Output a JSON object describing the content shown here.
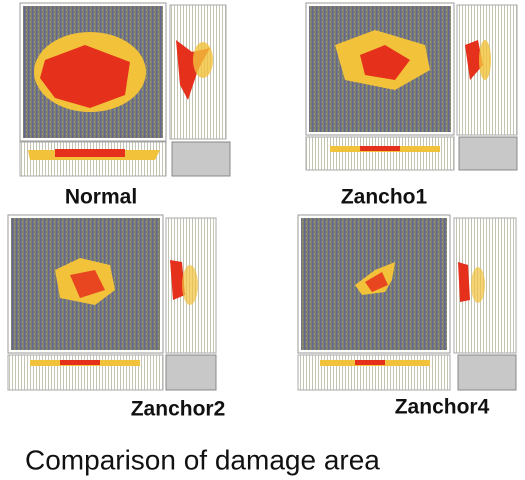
{
  "panels": [
    {
      "label": "Normal"
    },
    {
      "label": "Zancho1"
    },
    {
      "label": "Zanchor2"
    },
    {
      "label": "Zanchor4"
    }
  ],
  "caption": "Comparison of damage area"
}
